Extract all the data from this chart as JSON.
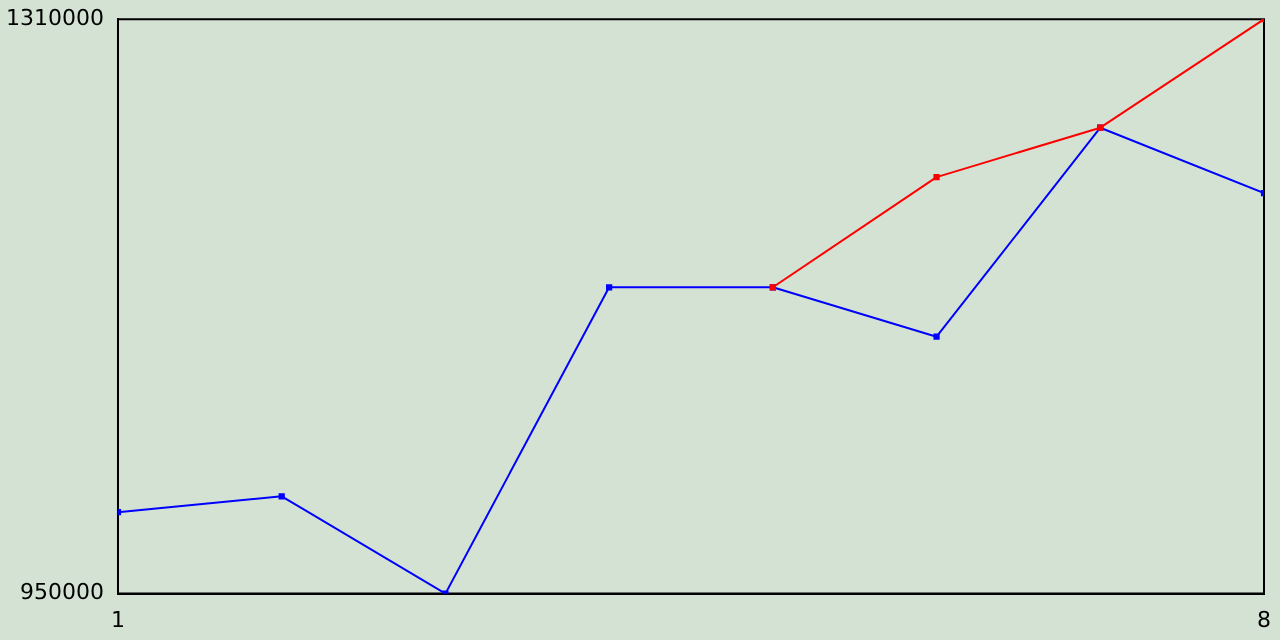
{
  "chart_data": {
    "type": "line",
    "x": [
      1,
      2,
      3,
      4,
      5,
      6,
      7,
      8
    ],
    "series": [
      {
        "color": "#0000ff",
        "values": [
          1001000,
          1011000,
          950000,
          1142000,
          1142000,
          1111000,
          1242000,
          1201000
        ]
      },
      {
        "color": "#ff0000",
        "values": [
          null,
          null,
          null,
          null,
          1142000,
          1211000,
          1242000,
          1310000
        ]
      }
    ],
    "xlim": [
      1,
      8
    ],
    "xticks": [
      1,
      8
    ],
    "ylim": [
      950000,
      1310000
    ],
    "yticks": [
      950000,
      1310000
    ],
    "grid": false,
    "legend": false,
    "marker": "square",
    "line_style": "solid"
  }
}
